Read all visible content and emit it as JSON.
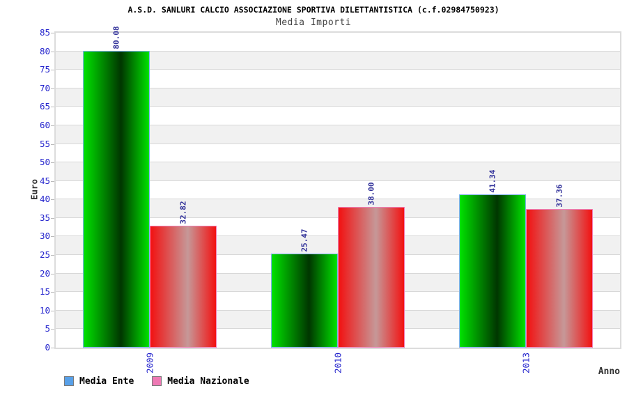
{
  "chart_data": {
    "type": "bar",
    "title": "A.S.D. SANLURI CALCIO ASSOCIAZIONE SPORTIVA DILETTANTISTICA (c.f.02984750923)",
    "subtitle": "Media Importi",
    "xlabel": "Anno",
    "ylabel": "Euro",
    "categories": [
      "2009",
      "2010",
      "2013"
    ],
    "series": [
      {
        "name": "Media Ente",
        "values": [
          80.08,
          25.47,
          41.34
        ],
        "fill_edge": "#00e200",
        "fill_mid": "#003600",
        "outline": "#7fb0f0",
        "legend_fill": "#58a0e8"
      },
      {
        "name": "Media Nazionale",
        "values": [
          32.82,
          38.0,
          37.36
        ],
        "fill_edge": "#f21111",
        "fill_mid": "#c69898",
        "outline": "#f080b8",
        "legend_fill": "#ee79b4"
      }
    ],
    "ylim": [
      0,
      85
    ],
    "ytick_step": 5,
    "yticks": [
      0,
      5,
      10,
      15,
      20,
      25,
      30,
      35,
      40,
      45,
      50,
      55,
      60,
      65,
      70,
      75,
      80,
      85
    ],
    "grid": true,
    "band_colors": [
      "#ffffff",
      "#f1f1f1"
    ],
    "value_label_decimals": 2,
    "legend_position": "bottom-left",
    "bar_label_rotation": -90,
    "category_label_rotation": -90
  },
  "colors": {
    "tick_label": "#2525cd",
    "value_label": "#32329a",
    "grid_line": "#d8d8d8",
    "plot_border": "#dcdcdc",
    "axis_title": "#333333",
    "subtitle_text": "#444444",
    "title_text": "#000000",
    "legend_swatch_border": "#7a7a7a"
  }
}
